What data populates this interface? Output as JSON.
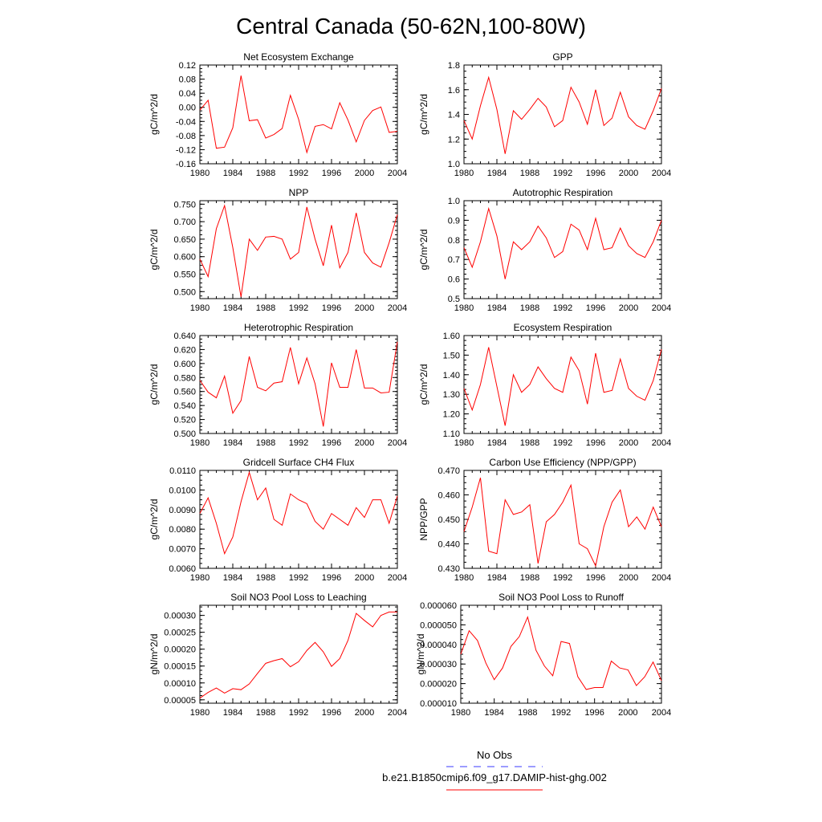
{
  "page": {
    "title": "Central Canada (50-62N,100-80W)"
  },
  "legend": {
    "entries": [
      {
        "label": "No Obs",
        "color": "#3a3aff",
        "dash": true
      },
      {
        "label": "b.e21.B1850cmip6.f09_g17.DAMIP-hist-ghg.002",
        "color": "#ff0000",
        "dash": false
      }
    ]
  },
  "chart_data": [
    {
      "type": "line",
      "title": "Net Ecosystem Exchange",
      "ylabel": "gC/m^2/d",
      "xlim": [
        1980,
        2004
      ],
      "xticks": [
        "1980",
        "1984",
        "1988",
        "1992",
        "1996",
        "2000",
        "2004"
      ],
      "ylim": [
        -0.16,
        0.12
      ],
      "yticks": [
        "-0.16",
        "-0.12",
        "-0.08",
        "-0.04",
        "0.00",
        "0.04",
        "0.08",
        "0.12"
      ],
      "x": [
        1980,
        1981,
        1982,
        1983,
        1984,
        1985,
        1986,
        1987,
        1988,
        1989,
        1990,
        1991,
        1992,
        1993,
        1994,
        1995,
        1996,
        1997,
        1998,
        1999,
        2000,
        2001,
        2002,
        2003,
        2004
      ],
      "series": [
        {
          "color": "#ff0000",
          "values": [
            -0.008,
            0.02,
            -0.116,
            -0.113,
            -0.058,
            0.09,
            -0.038,
            -0.035,
            -0.087,
            -0.077,
            -0.06,
            0.034,
            -0.034,
            -0.128,
            -0.054,
            -0.049,
            -0.061,
            0.013,
            -0.036,
            -0.098,
            -0.037,
            -0.009,
            0.001,
            -0.071,
            -0.068
          ]
        }
      ]
    },
    {
      "type": "line",
      "title": "GPP",
      "ylabel": "gC/m^2/d",
      "xlim": [
        1980,
        2004
      ],
      "xticks": [
        "1980",
        "1984",
        "1988",
        "1992",
        "1996",
        "2000",
        "2004"
      ],
      "ylim": [
        1.0,
        1.8
      ],
      "yticks": [
        "1.0",
        "1.2",
        "1.4",
        "1.6",
        "1.8"
      ],
      "x": [
        1980,
        1981,
        1982,
        1983,
        1984,
        1985,
        1986,
        1987,
        1988,
        1989,
        1990,
        1991,
        1992,
        1993,
        1994,
        1995,
        1996,
        1997,
        1998,
        1999,
        2000,
        2001,
        2002,
        2003,
        2004
      ],
      "series": [
        {
          "color": "#ff0000",
          "values": [
            1.35,
            1.2,
            1.47,
            1.7,
            1.44,
            1.08,
            1.43,
            1.36,
            1.44,
            1.53,
            1.46,
            1.3,
            1.35,
            1.62,
            1.5,
            1.32,
            1.6,
            1.31,
            1.37,
            1.58,
            1.38,
            1.31,
            1.28,
            1.43,
            1.61
          ]
        }
      ]
    },
    {
      "type": "line",
      "title": "NPP",
      "ylabel": "gC/m^2/d",
      "xlim": [
        1980,
        2004
      ],
      "xticks": [
        "1980",
        "1984",
        "1988",
        "1992",
        "1996",
        "2000",
        "2004"
      ],
      "ylim": [
        0.48,
        0.76
      ],
      "yticks": [
        "0.500",
        "0.550",
        "0.600",
        "0.650",
        "0.700",
        "0.750"
      ],
      "x": [
        1980,
        1981,
        1982,
        1983,
        1984,
        1985,
        1986,
        1987,
        1988,
        1989,
        1990,
        1991,
        1992,
        1993,
        1994,
        1995,
        1996,
        1997,
        1998,
        1999,
        2000,
        2001,
        2002,
        2003,
        2004
      ],
      "series": [
        {
          "color": "#ff0000",
          "values": [
            0.593,
            0.543,
            0.68,
            0.746,
            0.626,
            0.485,
            0.65,
            0.618,
            0.656,
            0.658,
            0.65,
            0.593,
            0.612,
            0.742,
            0.65,
            0.574,
            0.69,
            0.568,
            0.612,
            0.725,
            0.612,
            0.582,
            0.57,
            0.64,
            0.72
          ]
        }
      ]
    },
    {
      "type": "line",
      "title": "Autotrophic Respiration",
      "ylabel": "gC/m^2/d",
      "xlim": [
        1980,
        2004
      ],
      "xticks": [
        "1980",
        "1984",
        "1988",
        "1992",
        "1996",
        "2000",
        "2004"
      ],
      "ylim": [
        0.5,
        1.0
      ],
      "yticks": [
        "0.5",
        "0.6",
        "0.7",
        "0.8",
        "0.9",
        "1.0"
      ],
      "x": [
        1980,
        1981,
        1982,
        1983,
        1984,
        1985,
        1986,
        1987,
        1988,
        1989,
        1990,
        1991,
        1992,
        1993,
        1994,
        1995,
        1996,
        1997,
        1998,
        1999,
        2000,
        2001,
        2002,
        2003,
        2004
      ],
      "series": [
        {
          "color": "#ff0000",
          "values": [
            0.76,
            0.66,
            0.79,
            0.96,
            0.82,
            0.6,
            0.79,
            0.75,
            0.79,
            0.87,
            0.81,
            0.71,
            0.74,
            0.88,
            0.85,
            0.75,
            0.91,
            0.75,
            0.76,
            0.86,
            0.77,
            0.73,
            0.71,
            0.79,
            0.9
          ]
        }
      ]
    },
    {
      "type": "line",
      "title": "Heterotrophic Respiration",
      "ylabel": "gC/m^2/d",
      "xlim": [
        1980,
        2004
      ],
      "xticks": [
        "1980",
        "1984",
        "1988",
        "1992",
        "1996",
        "2000",
        "2004"
      ],
      "ylim": [
        0.5,
        0.64
      ],
      "yticks": [
        "0.500",
        "0.520",
        "0.540",
        "0.560",
        "0.580",
        "0.600",
        "0.620",
        "0.640"
      ],
      "x": [
        1980,
        1981,
        1982,
        1983,
        1984,
        1985,
        1986,
        1987,
        1988,
        1989,
        1990,
        1991,
        1992,
        1993,
        1994,
        1995,
        1996,
        1997,
        1998,
        1999,
        2000,
        2001,
        2002,
        2003,
        2004
      ],
      "series": [
        {
          "color": "#ff0000",
          "values": [
            0.576,
            0.559,
            0.551,
            0.582,
            0.529,
            0.547,
            0.61,
            0.566,
            0.561,
            0.572,
            0.574,
            0.623,
            0.571,
            0.608,
            0.571,
            0.51,
            0.601,
            0.566,
            0.566,
            0.62,
            0.565,
            0.565,
            0.558,
            0.559,
            0.631
          ]
        }
      ]
    },
    {
      "type": "line",
      "title": "Ecosystem Respiration",
      "ylabel": "gC/m^2/d",
      "xlim": [
        1980,
        2004
      ],
      "xticks": [
        "1980",
        "1984",
        "1988",
        "1992",
        "1996",
        "2000",
        "2004"
      ],
      "ylim": [
        1.1,
        1.6
      ],
      "yticks": [
        "1.10",
        "1.20",
        "1.30",
        "1.40",
        "1.50",
        "1.60"
      ],
      "x": [
        1980,
        1981,
        1982,
        1983,
        1984,
        1985,
        1986,
        1987,
        1988,
        1989,
        1990,
        1991,
        1992,
        1993,
        1994,
        1995,
        1996,
        1997,
        1998,
        1999,
        2000,
        2001,
        2002,
        2003,
        2004
      ],
      "series": [
        {
          "color": "#ff0000",
          "values": [
            1.33,
            1.22,
            1.35,
            1.54,
            1.34,
            1.14,
            1.4,
            1.31,
            1.35,
            1.44,
            1.38,
            1.33,
            1.31,
            1.49,
            1.42,
            1.25,
            1.51,
            1.31,
            1.32,
            1.48,
            1.33,
            1.29,
            1.27,
            1.37,
            1.53
          ]
        }
      ]
    },
    {
      "type": "line",
      "title": "Gridcell Surface CH4 Flux",
      "ylabel": "gC/m^2/d",
      "xlim": [
        1980,
        2004
      ],
      "xticks": [
        "1980",
        "1984",
        "1988",
        "1992",
        "1996",
        "2000",
        "2004"
      ],
      "ylim": [
        0.006,
        0.011
      ],
      "yticks": [
        "0.0060",
        "0.0070",
        "0.0080",
        "0.0090",
        "0.0100",
        "0.0110"
      ],
      "x": [
        1980,
        1981,
        1982,
        1983,
        1984,
        1985,
        1986,
        1987,
        1988,
        1989,
        1990,
        1991,
        1992,
        1993,
        1994,
        1995,
        1996,
        1997,
        1998,
        1999,
        2000,
        2001,
        2002,
        2003,
        2004
      ],
      "series": [
        {
          "color": "#ff0000",
          "values": [
            0.0088,
            0.0096,
            0.0083,
            0.00675,
            0.0076,
            0.0094,
            0.0109,
            0.0095,
            0.0101,
            0.0085,
            0.0082,
            0.0098,
            0.0095,
            0.0093,
            0.0084,
            0.008,
            0.0088,
            0.0085,
            0.0082,
            0.0091,
            0.0086,
            0.0095,
            0.0095,
            0.0083,
            0.0097
          ]
        }
      ]
    },
    {
      "type": "line",
      "title": "Carbon Use Efficiency (NPP/GPP)",
      "ylabel": "NPP/GPP",
      "xlim": [
        1980,
        2004
      ],
      "xticks": [
        "1980",
        "1984",
        "1988",
        "1992",
        "1996",
        "2000",
        "2004"
      ],
      "ylim": [
        0.43,
        0.47
      ],
      "yticks": [
        "0.430",
        "0.440",
        "0.450",
        "0.460",
        "0.470"
      ],
      "x": [
        1980,
        1981,
        1982,
        1983,
        1984,
        1985,
        1986,
        1987,
        1988,
        1989,
        1990,
        1991,
        1992,
        1993,
        1994,
        1995,
        1996,
        1997,
        1998,
        1999,
        2000,
        2001,
        2002,
        2003,
        2004
      ],
      "series": [
        {
          "color": "#ff0000",
          "values": [
            0.445,
            0.455,
            0.467,
            0.437,
            0.436,
            0.458,
            0.452,
            0.453,
            0.456,
            0.432,
            0.449,
            0.452,
            0.457,
            0.464,
            0.44,
            0.438,
            0.431,
            0.447,
            0.457,
            0.462,
            0.447,
            0.451,
            0.446,
            0.455,
            0.447
          ]
        }
      ]
    },
    {
      "type": "line",
      "title": "Soil NO3 Pool Loss to Leaching",
      "ylabel": "gN/m^2/d",
      "xlim": [
        1980,
        2004
      ],
      "xticks": [
        "1980",
        "1984",
        "1988",
        "1992",
        "1996",
        "2000",
        "2004"
      ],
      "ylim": [
        4e-05,
        0.00033
      ],
      "yticks": [
        "0.00005",
        "0.00010",
        "0.00015",
        "0.00020",
        "0.00025",
        "0.00030"
      ],
      "x": [
        1980,
        1981,
        1982,
        1983,
        1984,
        1985,
        1986,
        1987,
        1988,
        1989,
        1990,
        1991,
        1992,
        1993,
        1994,
        1995,
        1996,
        1997,
        1998,
        1999,
        2000,
        2001,
        2002,
        2003,
        2004
      ],
      "series": [
        {
          "color": "#ff0000",
          "values": [
            5.5e-05,
            7.2e-05,
            8.5e-05,
            7e-05,
            8.3e-05,
            8e-05,
            9.7e-05,
            0.000128,
            0.000158,
            0.000166,
            0.000172,
            0.000148,
            0.000163,
            0.000196,
            0.00022,
            0.000192,
            0.000149,
            0.000172,
            0.000226,
            0.000306,
            0.000285,
            0.000266,
            0.0003,
            0.00031,
            0.00031
          ]
        }
      ]
    },
    {
      "type": "line",
      "title": "Soil NO3 Pool Loss to Runoff",
      "ylabel": "gN/m^2/d",
      "xlim": [
        1980,
        2004
      ],
      "xticks": [
        "1980",
        "1984",
        "1988",
        "1992",
        "1996",
        "2000",
        "2004"
      ],
      "ylim": [
        1e-05,
        6e-05
      ],
      "yticks": [
        "0.000010",
        "0.000020",
        "0.000030",
        "0.000040",
        "0.000050",
        "0.000060"
      ],
      "x": [
        1980,
        1981,
        1982,
        1983,
        1984,
        1985,
        1986,
        1987,
        1988,
        1989,
        1990,
        1991,
        1992,
        1993,
        1994,
        1995,
        1996,
        1997,
        1998,
        1999,
        2000,
        2001,
        2002,
        2003,
        2004
      ],
      "series": [
        {
          "color": "#ff0000",
          "values": [
            3.5e-05,
            4.7e-05,
            4.2e-05,
            3.05e-05,
            2.2e-05,
            2.8e-05,
            3.9e-05,
            4.4e-05,
            5.4e-05,
            3.7e-05,
            2.9e-05,
            2.4e-05,
            4.15e-05,
            4.05e-05,
            2.35e-05,
            1.7e-05,
            1.8e-05,
            1.8e-05,
            3.15e-05,
            2.8e-05,
            2.7e-05,
            1.9e-05,
            2.35e-05,
            3.1e-05,
            2.15e-05
          ]
        }
      ]
    }
  ]
}
